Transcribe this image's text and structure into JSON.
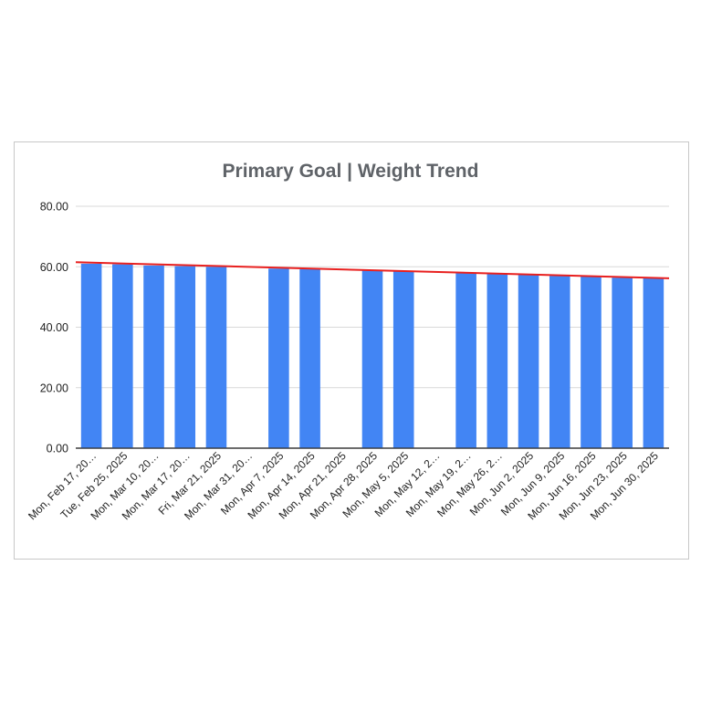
{
  "chart_data": {
    "type": "bar",
    "title": "Primary Goal | Weight Trend",
    "xlabel": "",
    "ylabel": "",
    "ylim": [
      0,
      80
    ],
    "yticks": [
      "0.00",
      "20.00",
      "40.00",
      "60.00",
      "80.00"
    ],
    "grid": true,
    "legend": "none",
    "categories": [
      "Mon, Feb 17, 20…",
      "Tue, Feb 25, 2025",
      "Mon, Mar 10, 20…",
      "Mon, Mar 17, 20…",
      "Fri, Mar 21, 2025",
      "Mon, Mar 31, 20…",
      "Mon, Apr 7, 2025",
      "Mon, Apr 14, 2025",
      "Mon, Apr 21, 2025",
      "Mon, Apr 28, 2025",
      "Mon, May 5, 2025",
      "Mon, May 12, 2…",
      "Mon, May 19, 2…",
      "Mon, May 26, 2…",
      "Mon, Jun 2, 2025",
      "Mon, Jun 9, 2025",
      "Mon, Jun 16, 2025",
      "Mon, Jun 23, 2025",
      "Mon, Jun 30, 2025"
    ],
    "series": [
      {
        "name": "Weight",
        "color": "#4285f4",
        "values": [
          61.0,
          60.8,
          60.4,
          60.2,
          60.0,
          null,
          59.4,
          59.2,
          null,
          58.8,
          58.6,
          null,
          58.0,
          57.8,
          57.4,
          57.0,
          56.8,
          56.4,
          56.2
        ]
      }
    ],
    "trendline": {
      "type": "linear",
      "color": "#e8201f",
      "start": 61.5,
      "end": 56.2
    }
  }
}
